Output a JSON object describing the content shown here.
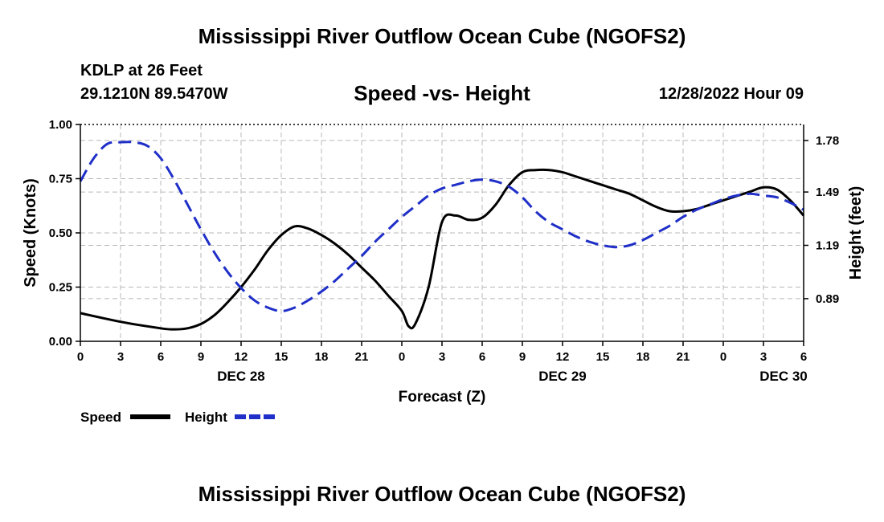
{
  "page_title": "Mississippi River Outflow Ocean Cube (NGOFS2)",
  "station": {
    "name": "KDLP at 26 Feet",
    "coords": "29.1210N  89.5470W",
    "datetime": "12/28/2022 Hour 09"
  },
  "footer_title": "Mississippi River Outflow Ocean Cube (NGOFS2)",
  "colors": {
    "speed": "#000000",
    "height": "#1f2fc8",
    "grid": "#b8b8b8"
  },
  "chart_data": {
    "type": "line",
    "title": "Speed -vs- Height",
    "xlabel": "Forecast (Z)",
    "ylabel": "Speed (Knots)",
    "y2label": "Height (feet)",
    "xlim": [
      0,
      54
    ],
    "ylim": [
      0,
      1
    ],
    "y2lim": [
      0.65,
      1.87
    ],
    "x_ticks": [
      0,
      3,
      6,
      9,
      12,
      15,
      18,
      21,
      24,
      27,
      30,
      33,
      36,
      39,
      42,
      45,
      48,
      51,
      54
    ],
    "x_tick_labels": [
      "0",
      "3",
      "6",
      "9",
      "12",
      "15",
      "18",
      "21",
      "0",
      "3",
      "6",
      "9",
      "12",
      "15",
      "18",
      "21",
      "0",
      "3",
      "6"
    ],
    "date_labels": [
      {
        "x": 12,
        "label": "DEC 28"
      },
      {
        "x": 36,
        "label": "DEC 29"
      },
      {
        "x": 52.5,
        "label": "DEC 30"
      }
    ],
    "y_ticks": [
      0,
      0.25,
      0.5,
      0.75,
      1.0
    ],
    "y_tick_labels": [
      "0.00",
      "0.25",
      "0.50",
      "0.75",
      "1.00"
    ],
    "y2_ticks": [
      0.89,
      1.19,
      1.49,
      1.78
    ],
    "y2_tick_labels": [
      "0.89",
      "1.19",
      "1.49",
      "1.78"
    ],
    "series": [
      {
        "name": "Speed",
        "axis": "left",
        "style": "solid",
        "x": [
          0,
          3,
          6,
          7,
          8,
          9,
          10,
          11,
          12,
          13,
          14,
          15,
          16,
          17,
          18,
          19,
          20,
          21,
          22,
          23,
          24,
          24.5,
          25,
          26,
          27,
          28,
          29,
          30,
          31,
          32,
          33,
          34,
          35,
          36,
          37,
          38,
          39,
          40,
          41,
          42,
          43,
          44,
          45,
          46,
          47,
          48,
          49,
          50,
          51,
          52,
          53,
          54
        ],
        "values": [
          0.13,
          0.09,
          0.06,
          0.055,
          0.06,
          0.08,
          0.12,
          0.18,
          0.25,
          0.33,
          0.42,
          0.49,
          0.53,
          0.52,
          0.49,
          0.45,
          0.4,
          0.34,
          0.28,
          0.21,
          0.14,
          0.07,
          0.08,
          0.25,
          0.55,
          0.58,
          0.56,
          0.57,
          0.63,
          0.72,
          0.78,
          0.79,
          0.79,
          0.78,
          0.76,
          0.74,
          0.72,
          0.7,
          0.68,
          0.65,
          0.62,
          0.6,
          0.6,
          0.61,
          0.63,
          0.65,
          0.67,
          0.69,
          0.71,
          0.7,
          0.65,
          0.58
        ]
      },
      {
        "name": "Height",
        "axis": "right",
        "style": "dashed",
        "x": [
          0,
          1,
          2,
          3,
          4,
          5,
          6,
          7,
          8,
          9,
          10,
          11,
          12,
          13,
          14,
          15,
          16,
          17,
          18,
          19,
          20,
          21,
          22,
          23,
          24,
          25,
          26,
          27,
          28,
          29,
          30,
          31,
          32,
          33,
          34,
          35,
          36,
          37,
          38,
          39,
          40,
          41,
          42,
          43,
          44,
          45,
          46,
          47,
          48,
          49,
          50,
          51,
          52,
          53,
          54
        ],
        "values": [
          1.55,
          1.68,
          1.76,
          1.77,
          1.77,
          1.75,
          1.68,
          1.56,
          1.42,
          1.28,
          1.15,
          1.04,
          0.95,
          0.88,
          0.84,
          0.82,
          0.84,
          0.88,
          0.93,
          0.99,
          1.06,
          1.13,
          1.21,
          1.28,
          1.35,
          1.41,
          1.47,
          1.51,
          1.53,
          1.55,
          1.56,
          1.55,
          1.52,
          1.46,
          1.38,
          1.32,
          1.28,
          1.24,
          1.21,
          1.19,
          1.18,
          1.19,
          1.22,
          1.26,
          1.3,
          1.35,
          1.39,
          1.42,
          1.45,
          1.47,
          1.48,
          1.47,
          1.46,
          1.43,
          1.39
        ]
      }
    ],
    "legend": [
      {
        "label": "Speed",
        "style": "solid"
      },
      {
        "label": "Height",
        "style": "dashed"
      }
    ]
  }
}
